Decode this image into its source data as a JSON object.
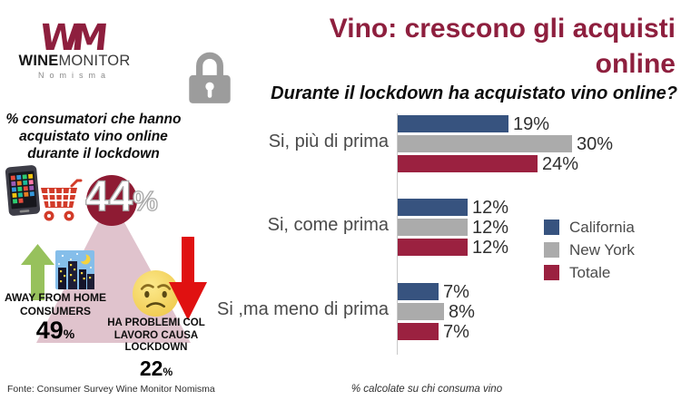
{
  "logo": {
    "mark": "WM",
    "wine": "WINE",
    "monitor": "MONITOR",
    "sub": "Nomisma"
  },
  "header": {
    "title_line1": "Vino: crescono gli acquisti",
    "title_line2": "online",
    "subtitle": "Durante il lockdown ha acquistato vino online?"
  },
  "left_panel": {
    "intro_line1": "% consumatori che hanno",
    "intro_line2": "acquistato vino online",
    "intro_line3": "durante il lockdown",
    "big_stat_value": "44",
    "big_stat_pct": "%",
    "away_line1": "AWAY FROM HOME",
    "away_line2": "CONSUMERS",
    "away_value": "49",
    "away_pct": "%",
    "problems_line1": "HA PROBLEMI COL",
    "problems_line2": "LAVORO CAUSA",
    "problems_line3": "LOCKDOWN",
    "problems_value": "22",
    "problems_pct": "%",
    "source": "Fonte: Consumer Survey Wine Monitor Nomisma"
  },
  "chart_data": {
    "type": "bar",
    "orientation": "horizontal",
    "title": "Durante il lockdown ha acquistato vino online?",
    "categories": [
      "Si, più di prima",
      "Si, come prima",
      "Si ,ma meno di prima"
    ],
    "series": [
      {
        "name": "California",
        "color": "#37537F",
        "values": [
          19,
          12,
          7
        ]
      },
      {
        "name": "New York",
        "color": "#ABABAB",
        "values": [
          30,
          12,
          8
        ]
      },
      {
        "name": "Totale",
        "color": "#9B2140",
        "values": [
          24,
          12,
          7
        ]
      }
    ],
    "value_suffix": "%",
    "xlim": [
      0,
      33
    ],
    "grid": false,
    "legend_position": "right",
    "footnote": "% calcolate su chi consuma vino"
  },
  "icons": {
    "logo_mark": "winemonitor-logo",
    "padlock": "padlock-icon",
    "smartphone": "smartphone-icon",
    "shopping_cart": "shopping-cart-icon",
    "arrow_up": "green-up-arrow-icon",
    "city_night": "city-night-icon",
    "worried_face": "worried-face-icon",
    "arrow_down": "red-down-arrow-icon"
  },
  "colors": {
    "brand_maroon": "#8E1F3E",
    "stat_circle": "#8E1B33",
    "beam_pink": "#E0C3CD",
    "arrow_green": "#97C15C",
    "arrow_red": "#E01111",
    "axis_gray": "#C9C9C9"
  }
}
